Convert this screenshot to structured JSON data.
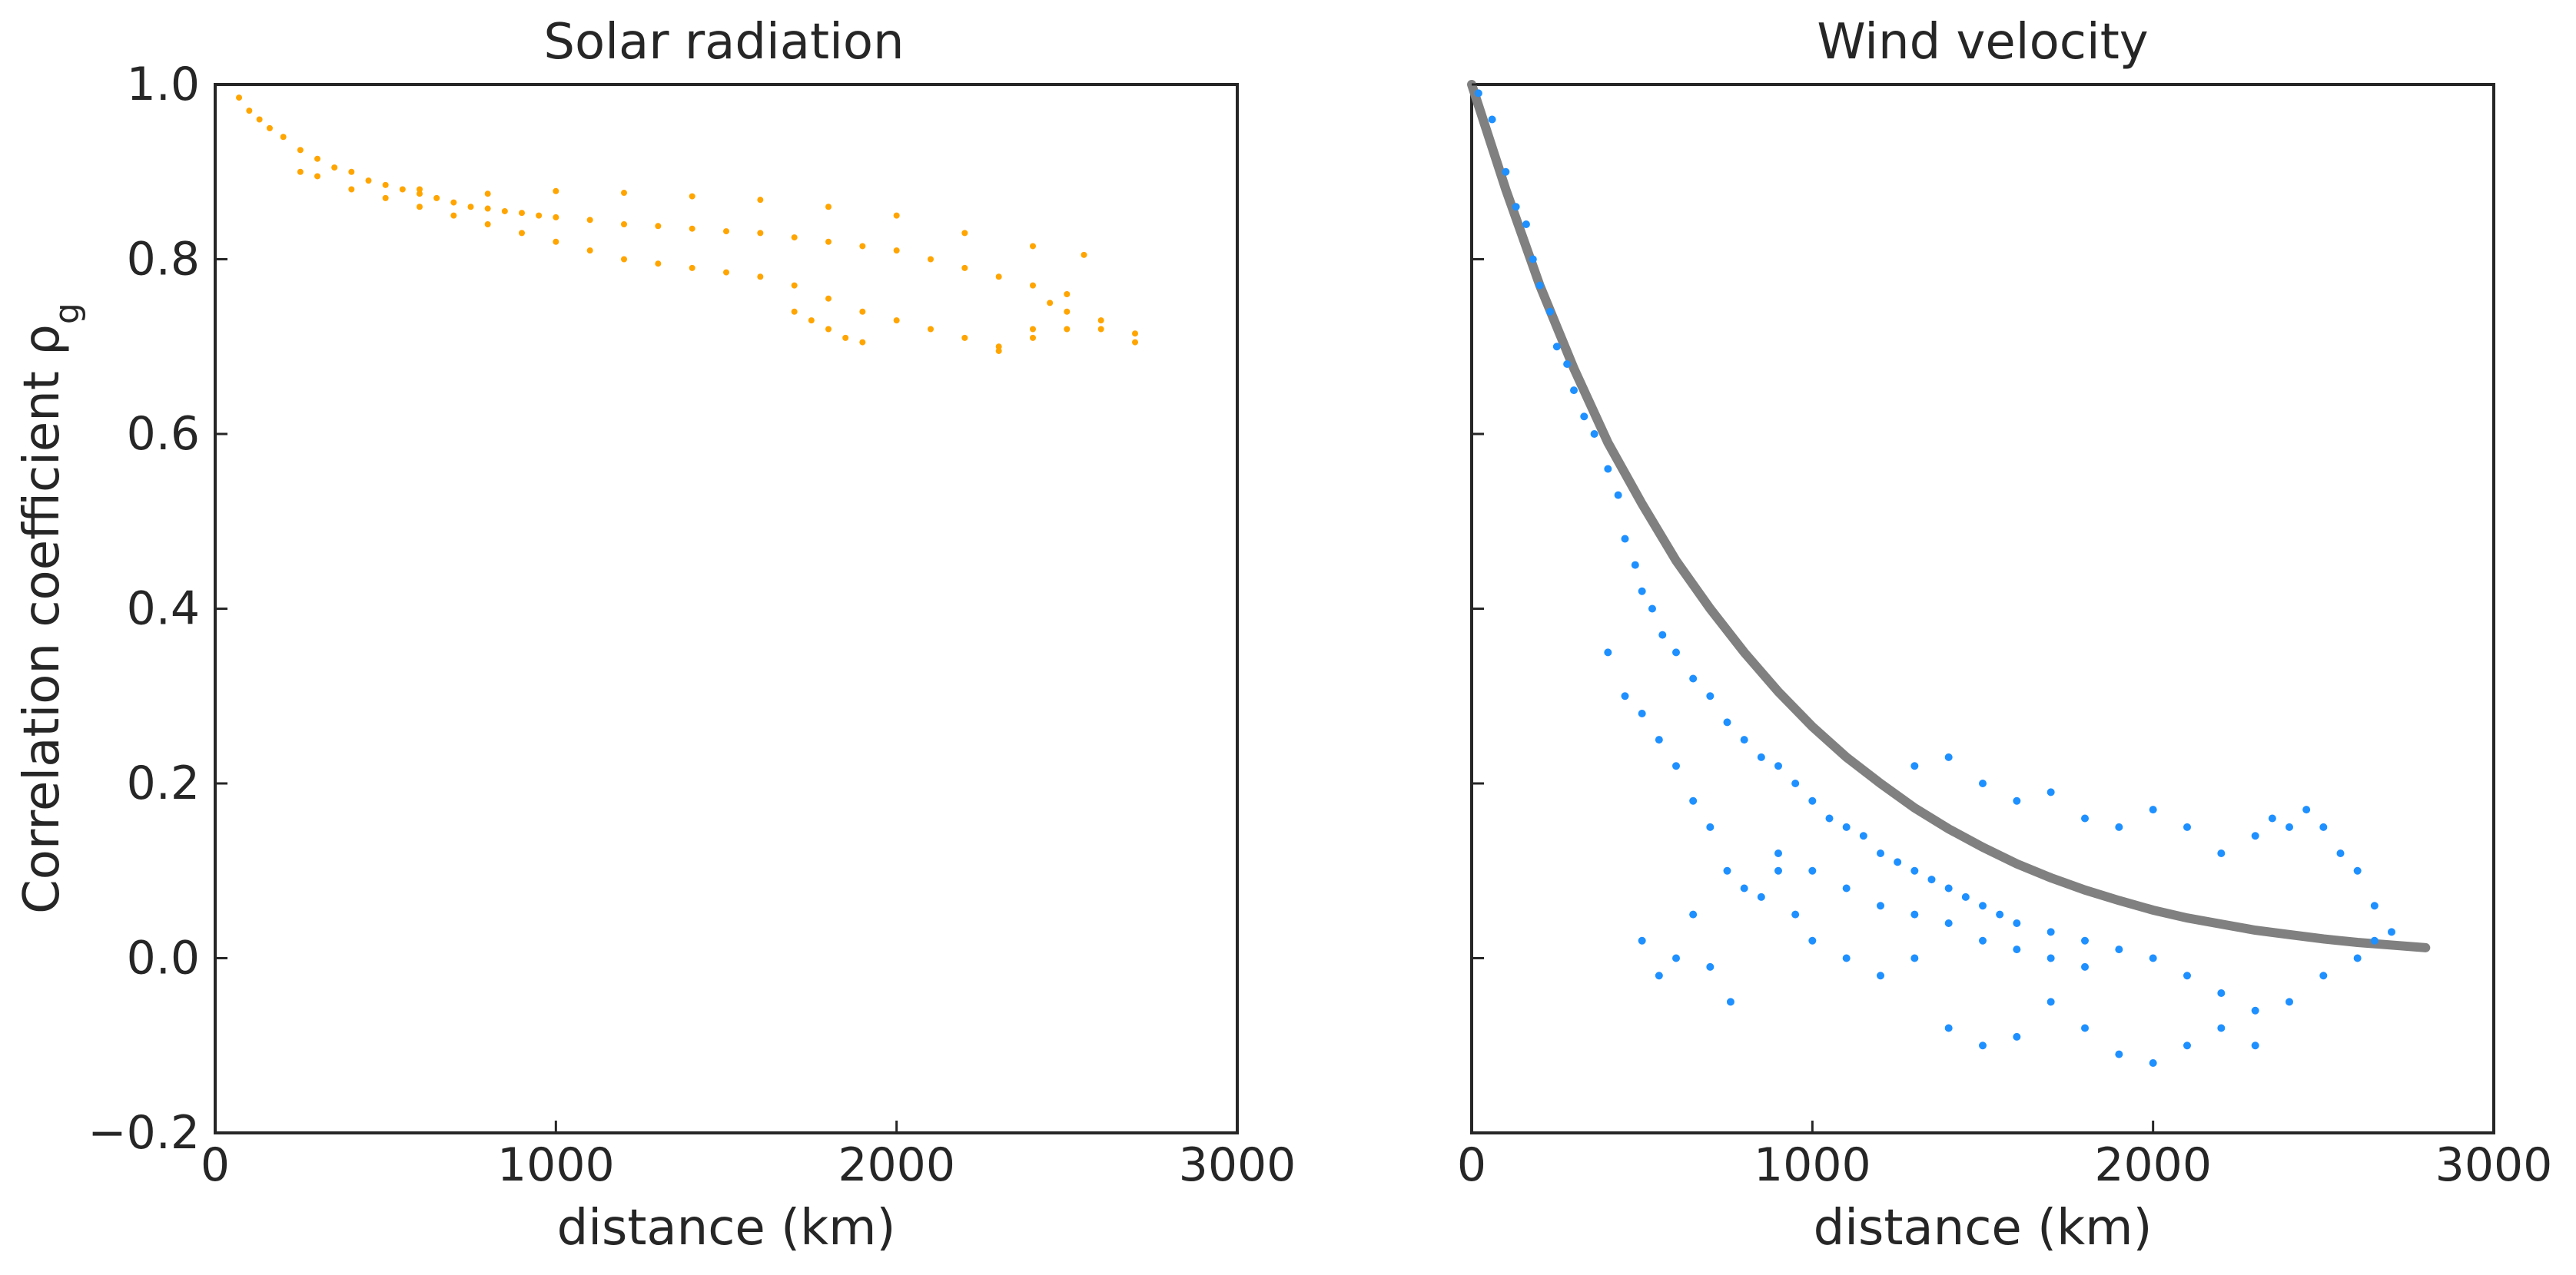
{
  "chart_data": [
    {
      "type": "scatter",
      "title": "Solar radiation",
      "xlabel": "distance (km)",
      "ylabel": "Correlation coefficient ρ",
      "ylabel_subscript": "g",
      "xlim": [
        0,
        3000
      ],
      "ylim": [
        -0.2,
        1.0
      ],
      "x_ticks": [
        0,
        1000,
        2000,
        3000
      ],
      "x_tick_labels": [
        "0",
        "1000",
        "2000",
        "3000"
      ],
      "y_ticks": [
        -0.2,
        0.0,
        0.2,
        0.4,
        0.6,
        0.8,
        1.0
      ],
      "y_tick_labels": [
        "−0.2",
        "0.0",
        "0.2",
        "0.4",
        "0.6",
        "0.8",
        "1.0"
      ],
      "grid": false,
      "point_color": "#ffa500",
      "series": [
        {
          "points": [
            [
              70,
              0.985
            ],
            [
              100,
              0.97
            ],
            [
              130,
              0.96
            ],
            [
              160,
              0.95
            ],
            [
              200,
              0.94
            ],
            [
              250,
              0.925
            ],
            [
              300,
              0.915
            ],
            [
              350,
              0.905
            ],
            [
              400,
              0.9
            ],
            [
              450,
              0.89
            ],
            [
              500,
              0.885
            ],
            [
              550,
              0.88
            ],
            [
              600,
              0.875
            ],
            [
              650,
              0.87
            ],
            [
              700,
              0.865
            ],
            [
              750,
              0.86
            ],
            [
              800,
              0.858
            ],
            [
              850,
              0.855
            ],
            [
              900,
              0.853
            ],
            [
              950,
              0.85
            ],
            [
              1000,
              0.848
            ],
            [
              1100,
              0.845
            ],
            [
              1200,
              0.84
            ],
            [
              1300,
              0.838
            ],
            [
              1400,
              0.835
            ],
            [
              1500,
              0.832
            ],
            [
              1600,
              0.83
            ],
            [
              1700,
              0.825
            ],
            [
              1800,
              0.82
            ],
            [
              1900,
              0.815
            ],
            [
              2000,
              0.81
            ],
            [
              2100,
              0.8
            ],
            [
              2200,
              0.79
            ],
            [
              2300,
              0.78
            ],
            [
              2400,
              0.77
            ],
            [
              2500,
              0.76
            ],
            [
              2600,
              0.73
            ],
            [
              2700,
              0.715
            ],
            [
              250,
              0.9
            ],
            [
              300,
              0.895
            ],
            [
              400,
              0.88
            ],
            [
              500,
              0.87
            ],
            [
              600,
              0.86
            ],
            [
              700,
              0.85
            ],
            [
              800,
              0.84
            ],
            [
              900,
              0.83
            ],
            [
              1000,
              0.82
            ],
            [
              1100,
              0.81
            ],
            [
              1200,
              0.8
            ],
            [
              1300,
              0.795
            ],
            [
              1400,
              0.79
            ],
            [
              1500,
              0.785
            ],
            [
              1600,
              0.78
            ],
            [
              1700,
              0.77
            ],
            [
              1800,
              0.755
            ],
            [
              1900,
              0.74
            ],
            [
              2000,
              0.73
            ],
            [
              2100,
              0.72
            ],
            [
              2200,
              0.71
            ],
            [
              2300,
              0.7
            ],
            [
              2400,
              0.71
            ],
            [
              2500,
              0.72
            ],
            [
              2600,
              0.72
            ],
            [
              2700,
              0.705
            ],
            [
              600,
              0.88
            ],
            [
              800,
              0.875
            ],
            [
              1000,
              0.878
            ],
            [
              1200,
              0.876
            ],
            [
              1400,
              0.872
            ],
            [
              1600,
              0.868
            ],
            [
              1800,
              0.86
            ],
            [
              2000,
              0.85
            ],
            [
              2200,
              0.83
            ],
            [
              2400,
              0.815
            ],
            [
              2550,
              0.805
            ],
            [
              1700,
              0.74
            ],
            [
              1750,
              0.73
            ],
            [
              1800,
              0.72
            ],
            [
              1850,
              0.71
            ],
            [
              1900,
              0.705
            ],
            [
              2300,
              0.695
            ],
            [
              2400,
              0.72
            ],
            [
              2450,
              0.75
            ],
            [
              2500,
              0.74
            ]
          ]
        }
      ]
    },
    {
      "type": "scatter",
      "title": "Wind velocity",
      "xlabel": "distance (km)",
      "xlim": [
        0,
        3000
      ],
      "ylim": [
        -0.2,
        1.0
      ],
      "x_ticks": [
        0,
        1000,
        2000,
        3000
      ],
      "x_tick_labels": [
        "0",
        "1000",
        "2000",
        "3000"
      ],
      "y_ticks": [
        -0.2,
        0.0,
        0.2,
        0.4,
        0.6,
        0.8,
        1.0
      ],
      "grid": false,
      "point_color": "#1e90ff",
      "fit_color": "#808080",
      "fit_curve": [
        [
          0,
          1.0
        ],
        [
          100,
          0.88
        ],
        [
          200,
          0.77
        ],
        [
          300,
          0.675
        ],
        [
          400,
          0.59
        ],
        [
          500,
          0.52
        ],
        [
          600,
          0.455
        ],
        [
          700,
          0.4
        ],
        [
          800,
          0.35
        ],
        [
          900,
          0.305
        ],
        [
          1000,
          0.265
        ],
        [
          1100,
          0.23
        ],
        [
          1200,
          0.2
        ],
        [
          1300,
          0.172
        ],
        [
          1400,
          0.148
        ],
        [
          1500,
          0.127
        ],
        [
          1600,
          0.108
        ],
        [
          1700,
          0.092
        ],
        [
          1800,
          0.078
        ],
        [
          1900,
          0.066
        ],
        [
          2000,
          0.055
        ],
        [
          2100,
          0.046
        ],
        [
          2200,
          0.039
        ],
        [
          2300,
          0.032
        ],
        [
          2400,
          0.027
        ],
        [
          2500,
          0.022
        ],
        [
          2600,
          0.018
        ],
        [
          2700,
          0.015
        ],
        [
          2800,
          0.012
        ]
      ],
      "series": [
        {
          "points": [
            [
              20,
              0.99
            ],
            [
              60,
              0.96
            ],
            [
              100,
              0.9
            ],
            [
              130,
              0.86
            ],
            [
              160,
              0.84
            ],
            [
              180,
              0.8
            ],
            [
              200,
              0.77
            ],
            [
              230,
              0.74
            ],
            [
              250,
              0.7
            ],
            [
              280,
              0.68
            ],
            [
              300,
              0.65
            ],
            [
              330,
              0.62
            ],
            [
              360,
              0.6
            ],
            [
              400,
              0.56
            ],
            [
              430,
              0.53
            ],
            [
              450,
              0.48
            ],
            [
              480,
              0.45
            ],
            [
              500,
              0.42
            ],
            [
              530,
              0.4
            ],
            [
              560,
              0.37
            ],
            [
              600,
              0.35
            ],
            [
              650,
              0.32
            ],
            [
              700,
              0.3
            ],
            [
              750,
              0.27
            ],
            [
              800,
              0.25
            ],
            [
              850,
              0.23
            ],
            [
              900,
              0.22
            ],
            [
              950,
              0.2
            ],
            [
              1000,
              0.18
            ],
            [
              1050,
              0.16
            ],
            [
              1100,
              0.15
            ],
            [
              1150,
              0.14
            ],
            [
              1200,
              0.12
            ],
            [
              1250,
              0.11
            ],
            [
              1300,
              0.1
            ],
            [
              1350,
              0.09
            ],
            [
              1400,
              0.08
            ],
            [
              1450,
              0.07
            ],
            [
              1500,
              0.06
            ],
            [
              1550,
              0.05
            ],
            [
              1600,
              0.04
            ],
            [
              1700,
              0.03
            ],
            [
              1800,
              0.02
            ],
            [
              1900,
              0.01
            ],
            [
              2000,
              0.0
            ],
            [
              2100,
              -0.02
            ],
            [
              2200,
              -0.04
            ],
            [
              2300,
              -0.06
            ],
            [
              2400,
              -0.05
            ],
            [
              2500,
              -0.02
            ],
            [
              2600,
              0.0
            ],
            [
              2650,
              0.02
            ],
            [
              500,
              0.02
            ],
            [
              550,
              -0.02
            ],
            [
              600,
              0.0
            ],
            [
              650,
              0.05
            ],
            [
              700,
              -0.01
            ],
            [
              760,
              -0.05
            ],
            [
              800,
              0.08
            ],
            [
              900,
              0.12
            ],
            [
              950,
              0.05
            ],
            [
              1000,
              0.02
            ],
            [
              1100,
              0.0
            ],
            [
              1200,
              -0.02
            ],
            [
              1300,
              0.0
            ],
            [
              1400,
              -0.08
            ],
            [
              1500,
              -0.1
            ],
            [
              1600,
              -0.09
            ],
            [
              1700,
              -0.05
            ],
            [
              1800,
              -0.08
            ],
            [
              1900,
              -0.11
            ],
            [
              2000,
              -0.12
            ],
            [
              2100,
              -0.1
            ],
            [
              2200,
              -0.08
            ],
            [
              2300,
              -0.1
            ],
            [
              1300,
              0.22
            ],
            [
              1400,
              0.23
            ],
            [
              1500,
              0.2
            ],
            [
              1600,
              0.18
            ],
            [
              1700,
              0.19
            ],
            [
              1800,
              0.16
            ],
            [
              1900,
              0.15
            ],
            [
              2000,
              0.17
            ],
            [
              2100,
              0.15
            ],
            [
              2200,
              0.12
            ],
            [
              2300,
              0.14
            ],
            [
              2350,
              0.16
            ],
            [
              2400,
              0.15
            ],
            [
              2450,
              0.17
            ],
            [
              2500,
              0.15
            ],
            [
              2550,
              0.12
            ],
            [
              2600,
              0.1
            ],
            [
              2650,
              0.06
            ],
            [
              2700,
              0.03
            ],
            [
              400,
              0.35
            ],
            [
              450,
              0.3
            ],
            [
              500,
              0.28
            ],
            [
              550,
              0.25
            ],
            [
              600,
              0.22
            ],
            [
              650,
              0.18
            ],
            [
              700,
              0.15
            ],
            [
              750,
              0.1
            ],
            [
              850,
              0.07
            ],
            [
              900,
              0.1
            ],
            [
              1000,
              0.1
            ],
            [
              1100,
              0.08
            ],
            [
              1200,
              0.06
            ],
            [
              1300,
              0.05
            ],
            [
              1400,
              0.04
            ],
            [
              1500,
              0.02
            ],
            [
              1600,
              0.01
            ],
            [
              1700,
              0.0
            ],
            [
              1800,
              -0.01
            ]
          ]
        }
      ]
    }
  ]
}
